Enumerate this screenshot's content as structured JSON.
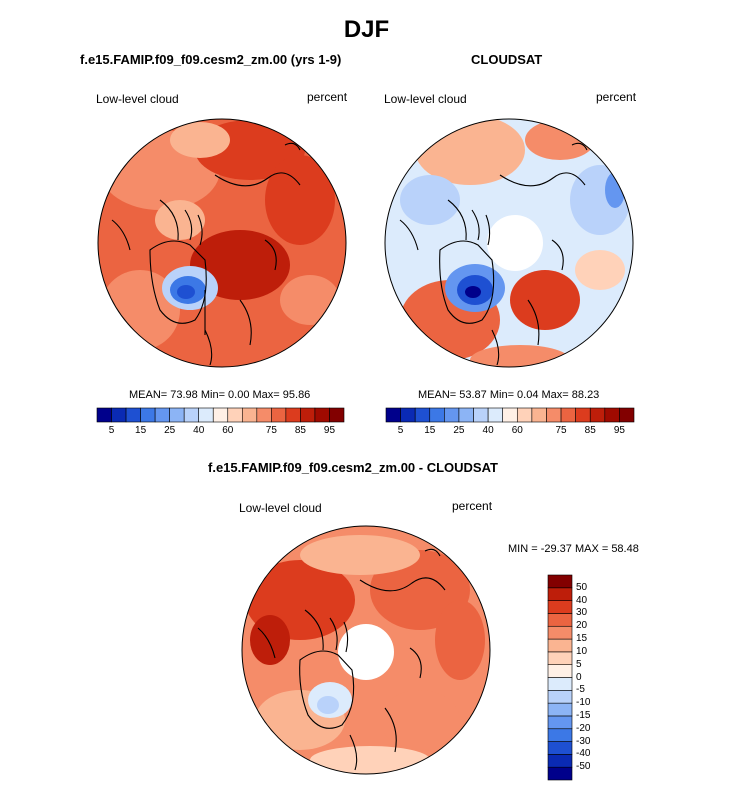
{
  "page": {
    "title": "DJF",
    "panels": [
      {
        "title": "f.e15.FAMIP.f09_f09.cesm2_zm.00 (yrs 1-9)",
        "left_label": "Low-level cloud",
        "right_label": "percent",
        "stats": "MEAN=  73.98  Min=   0.00  Max=  95.86"
      },
      {
        "title": "CLOUDSAT",
        "left_label": "Low-level cloud",
        "right_label": "percent",
        "stats": "MEAN=  53.87  Min=   0.04  Max=  88.23"
      },
      {
        "title": "f.e15.FAMIP.f09_f09.cesm2_zm.00 - CLOUDSAT",
        "left_label": "Low-level cloud",
        "right_label": "percent",
        "stats": "MIN = -29.37 MAX =  58.48"
      }
    ]
  },
  "chart_data": [
    {
      "type": "heatmap",
      "projection": "north polar stereographic",
      "title": "f.e15.FAMIP.f09_f09.cesm2_zm.00 (yrs 1-9)",
      "variable": "Low-level cloud",
      "units": "percent",
      "mean": 73.98,
      "min": 0.0,
      "max": 95.86,
      "colorbar": {
        "orientation": "horizontal",
        "levels": [
          5,
          10,
          15,
          20,
          25,
          30,
          40,
          50,
          60,
          65,
          70,
          75,
          80,
          85,
          90,
          95
        ],
        "tick_labels": [
          "5",
          "15",
          "25",
          "40",
          "60",
          "75",
          "85",
          "95"
        ],
        "colors": [
          "#00008b",
          "#0a2ab4",
          "#1e50d2",
          "#3c78e6",
          "#6496f0",
          "#8cb4f5",
          "#b9d2fa",
          "#dcebfc",
          "#fff0e6",
          "#ffd2b9",
          "#fab491",
          "#f58c69",
          "#eb6441",
          "#dc3c1e",
          "#be1e0a",
          "#a00a00",
          "#820000"
        ]
      }
    },
    {
      "type": "heatmap",
      "projection": "north polar stereographic",
      "title": "CLOUDSAT",
      "variable": "Low-level cloud",
      "units": "percent",
      "mean": 53.87,
      "min": 0.04,
      "max": 88.23,
      "colorbar": {
        "orientation": "horizontal",
        "levels": [
          5,
          10,
          15,
          20,
          25,
          30,
          40,
          50,
          60,
          65,
          70,
          75,
          80,
          85,
          90,
          95
        ],
        "tick_labels": [
          "5",
          "15",
          "25",
          "40",
          "60",
          "75",
          "85",
          "95"
        ],
        "colors": [
          "#00008b",
          "#0a2ab4",
          "#1e50d2",
          "#3c78e6",
          "#6496f0",
          "#8cb4f5",
          "#b9d2fa",
          "#dcebfc",
          "#fff0e6",
          "#ffd2b9",
          "#fab491",
          "#f58c69",
          "#eb6441",
          "#dc3c1e",
          "#be1e0a",
          "#a00a00",
          "#820000"
        ]
      }
    },
    {
      "type": "heatmap",
      "projection": "north polar stereographic",
      "title": "f.e15.FAMIP.f09_f09.cesm2_zm.00 - CLOUDSAT",
      "variable": "Low-level cloud",
      "units": "percent",
      "min": -29.37,
      "max": 58.48,
      "colorbar": {
        "orientation": "vertical",
        "levels": [
          -50,
          -40,
          -30,
          -20,
          -15,
          -10,
          -5,
          0,
          5,
          10,
          15,
          20,
          30,
          40,
          50
        ],
        "tick_labels": [
          "-50",
          "-40",
          "-30",
          "-20",
          "-15",
          "-10",
          "-5",
          "0",
          "5",
          "10",
          "15",
          "20",
          "30",
          "40",
          "50"
        ],
        "colors": [
          "#00008b",
          "#0a2ab4",
          "#1e50d2",
          "#3c78e6",
          "#6496f0",
          "#8cb4f5",
          "#b9d2fa",
          "#dcebfc",
          "#fff0e6",
          "#ffd2b9",
          "#fab491",
          "#f58c69",
          "#eb6441",
          "#dc3c1e",
          "#be1e0a",
          "#820000"
        ]
      }
    }
  ]
}
